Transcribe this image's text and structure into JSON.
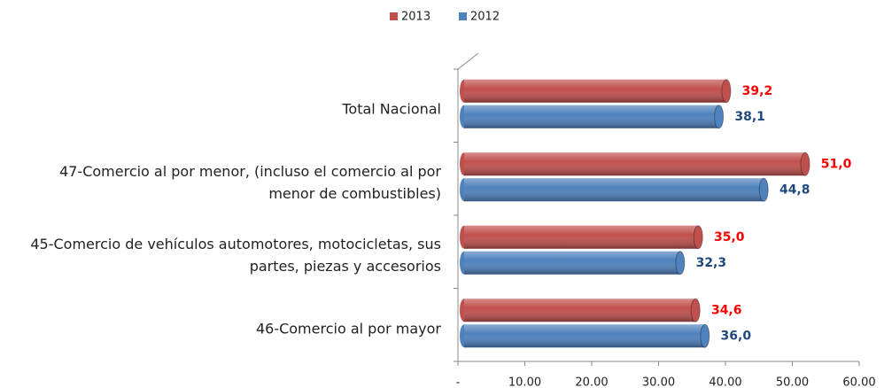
{
  "chart_data": {
    "type": "hbar",
    "categories": [
      "Total Nacional",
      "47-Comercio al por menor, (incluso el comercio al por menor de combustibles)",
      "45-Comercio de vehículos automotores, motocicletas, sus partes, piezas y accesorios",
      "46-Comercio al por mayor"
    ],
    "series": [
      {
        "name": "2013",
        "color": "#c0504d",
        "label_color": "#ff0000",
        "values": [
          39.2,
          51.0,
          35.0,
          34.6
        ],
        "value_labels": [
          "39,2",
          "51,0",
          "35,0",
          "34,6"
        ]
      },
      {
        "name": "2012",
        "color": "#4f81bd",
        "label_color": "#1f497d",
        "values": [
          38.1,
          44.8,
          32.3,
          36.0
        ],
        "value_labels": [
          "38,1",
          "44,8",
          "32,3",
          "36,0"
        ]
      }
    ],
    "xlim": [
      0,
      60
    ],
    "xticks": [
      {
        "value": 0,
        "label": "-"
      },
      {
        "value": 10,
        "label": "10.00"
      },
      {
        "value": 20,
        "label": "20.00"
      },
      {
        "value": 30,
        "label": "30.00"
      },
      {
        "value": 40,
        "label": "40.00"
      },
      {
        "value": 50,
        "label": "50.00"
      },
      {
        "value": 60,
        "label": "60.00"
      }
    ],
    "legend": "top"
  }
}
